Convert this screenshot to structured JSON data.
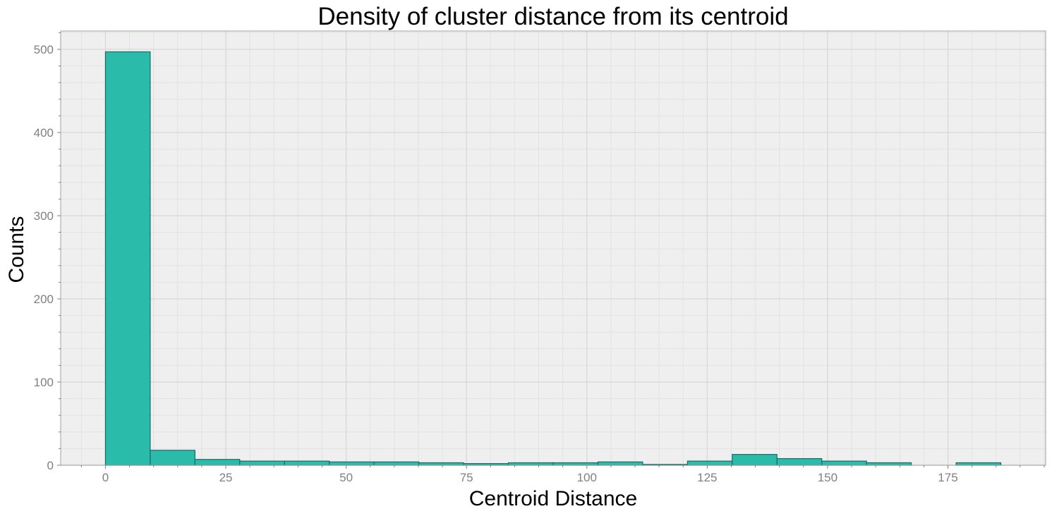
{
  "chart_data": {
    "type": "bar",
    "title": "Density of cluster distance from its centroid",
    "xlabel": "Centroid Distance",
    "ylabel": "Counts",
    "xlim": [
      -9.3,
      195.3
    ],
    "ylim": [
      0,
      522
    ],
    "xticks": [
      0,
      25,
      50,
      75,
      100,
      125,
      150,
      175
    ],
    "yticks": [
      0,
      100,
      200,
      300,
      400,
      500
    ],
    "grid": true,
    "bar_color": "#2bbbaa",
    "edge_color": "#1d6a66",
    "plot_background": "#efefef",
    "bins": [
      {
        "x0": 0.0,
        "x1": 9.3,
        "count": 497
      },
      {
        "x0": 9.3,
        "x1": 18.6,
        "count": 18
      },
      {
        "x0": 18.6,
        "x1": 27.9,
        "count": 7
      },
      {
        "x0": 27.9,
        "x1": 37.2,
        "count": 5
      },
      {
        "x0": 37.2,
        "x1": 46.5,
        "count": 5
      },
      {
        "x0": 46.5,
        "x1": 55.8,
        "count": 4
      },
      {
        "x0": 55.8,
        "x1": 65.1,
        "count": 4
      },
      {
        "x0": 65.1,
        "x1": 74.4,
        "count": 3
      },
      {
        "x0": 74.4,
        "x1": 83.7,
        "count": 2
      },
      {
        "x0": 83.7,
        "x1": 93.0,
        "count": 3
      },
      {
        "x0": 93.0,
        "x1": 102.3,
        "count": 3
      },
      {
        "x0": 102.3,
        "x1": 111.6,
        "count": 4
      },
      {
        "x0": 111.6,
        "x1": 120.9,
        "count": 1
      },
      {
        "x0": 120.9,
        "x1": 130.2,
        "count": 5
      },
      {
        "x0": 130.2,
        "x1": 139.5,
        "count": 13
      },
      {
        "x0": 139.5,
        "x1": 148.8,
        "count": 8
      },
      {
        "x0": 148.8,
        "x1": 158.1,
        "count": 5
      },
      {
        "x0": 158.1,
        "x1": 167.4,
        "count": 3
      },
      {
        "x0": 167.4,
        "x1": 176.7,
        "count": 0
      },
      {
        "x0": 176.7,
        "x1": 186.0,
        "count": 3
      }
    ]
  }
}
